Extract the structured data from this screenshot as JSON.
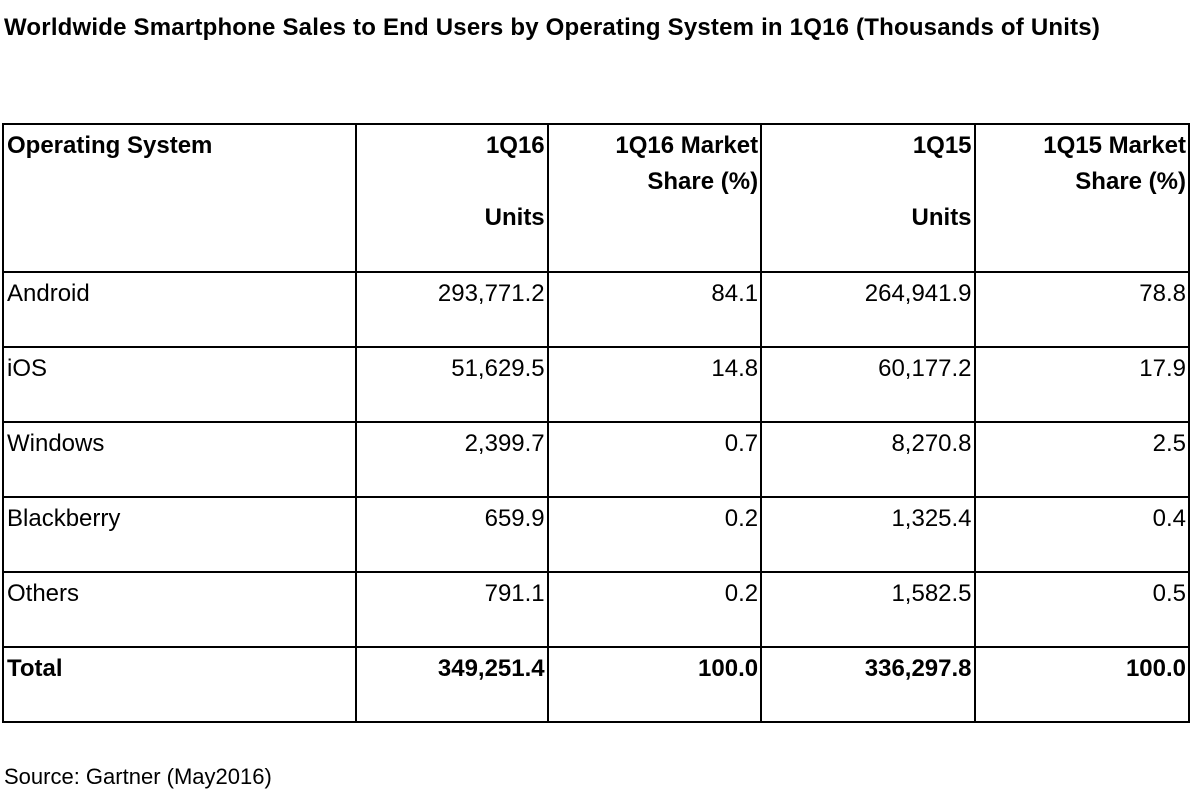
{
  "title": "Worldwide Smartphone Sales to End Users by Operating System in 1Q16 (Thousands of Units)",
  "table": {
    "headers": {
      "os": "Operating System",
      "q16_units_top": "1Q16",
      "q16_units_bottom": "Units",
      "q16_share_top": "1Q16 Market",
      "q16_share_bottom": "Share (%)",
      "q15_units_top": "1Q15",
      "q15_units_bottom": "Units",
      "q15_share_top": "1Q15 Market",
      "q15_share_bottom": "Share (%)"
    },
    "rows": [
      {
        "os": "Android",
        "q16_units": "293,771.2",
        "q16_share": "84.1",
        "q15_units": "264,941.9",
        "q15_share": "78.8"
      },
      {
        "os": "iOS",
        "q16_units": "51,629.5",
        "q16_share": "14.8",
        "q15_units": "60,177.2",
        "q15_share": "17.9"
      },
      {
        "os": "Windows",
        "q16_units": "2,399.7",
        "q16_share": "0.7",
        "q15_units": "8,270.8",
        "q15_share": "2.5"
      },
      {
        "os": "Blackberry",
        "q16_units": "659.9",
        "q16_share": "0.2",
        "q15_units": "1,325.4",
        "q15_share": "0.4"
      },
      {
        "os": "Others",
        "q16_units": "791.1",
        "q16_share": "0.2",
        "q15_units": "1,582.5",
        "q15_share": "0.5"
      }
    ],
    "total": {
      "os": "Total",
      "q16_units": "349,251.4",
      "q16_share": "100.0",
      "q15_units": "336,297.8",
      "q15_share": "100.0"
    }
  },
  "source": "Source: Gartner (May2016)"
}
